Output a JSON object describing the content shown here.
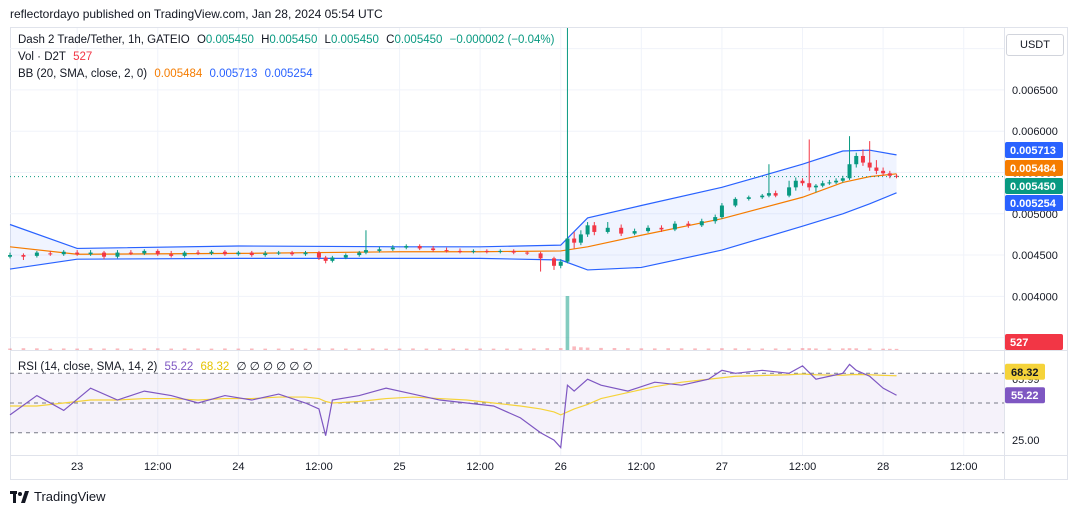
{
  "publish_line": "reflectordayo published on TradingView.com, Jan 28, 2024 05:54 UTC",
  "legend": {
    "symbol": "Dash 2 Trade/Tether, 1h, GATEIO",
    "o_label": "O",
    "o_value": "0.005450",
    "h_label": "H",
    "h_value": "0.005450",
    "l_label": "L",
    "l_value": "0.005450",
    "c_label": "C",
    "c_value": "0.005450",
    "change": "−0.000002 (−0.04%)",
    "vol_label": "Vol · D2T",
    "vol_value": "527",
    "bb_label": "BB (20, SMA, close, 2, 0)",
    "bb_basis": "0.005484",
    "bb_upper": "0.005713",
    "bb_lower": "0.005254",
    "rsi_label": "RSI (14, close, SMA, 14, 2)",
    "rsi_value": "55.22",
    "rsi_ma": "68.32",
    "rsi_extra": "∅ ∅ ∅ ∅ ∅ ∅"
  },
  "currency": "USDT",
  "brand": "TradingView",
  "colors": {
    "up": "#089981",
    "down": "#f23645",
    "basis": "#f57c00",
    "band": "#2962ff",
    "rsi": "#7e57c2",
    "rsi_ma": "#f5d33a"
  },
  "price_tags": [
    {
      "value": "0.005713",
      "color": "#2962ff"
    },
    {
      "value": "0.005484",
      "color": "#f57c00"
    },
    {
      "value": "0.005450",
      "color": "#089981"
    },
    {
      "value": "0.005254",
      "color": "#2962ff"
    },
    {
      "value": "527",
      "color": "#f23645"
    }
  ],
  "rsi_tags": [
    {
      "value": "68.32",
      "color": "#f5d33a",
      "text": "#131722"
    },
    {
      "value": "55.22",
      "color": "#7e57c2",
      "text": "#ffffff"
    }
  ],
  "chart_data": {
    "type": "candlestick",
    "ylim": [
      0.00335,
      0.00725
    ],
    "y_ticks": [
      "0.007000",
      "0.006500",
      "0.006000",
      "0.005500",
      "0.005000",
      "0.004500",
      "0.004000",
      "0.003500"
    ],
    "y_tick_values": [
      0.007,
      0.0065,
      0.006,
      0.0055,
      0.005,
      0.0045,
      0.004,
      0.0035
    ],
    "x_ticks": [
      "23",
      "12:00",
      "24",
      "12:00",
      "25",
      "12:00",
      "26",
      "12:00",
      "27",
      "12:00",
      "28",
      "12:00"
    ],
    "x_tick_hours": [
      0,
      12,
      24,
      36,
      48,
      60,
      72,
      84,
      96,
      108,
      120,
      132
    ],
    "x_hour_range": [
      -10,
      138
    ],
    "last_price": 0.00545,
    "bollinger": {
      "hours": [
        -10,
        0,
        24,
        48,
        60,
        72,
        76,
        84,
        96,
        108,
        114,
        118,
        122
      ],
      "upper": [
        0.00487,
        0.00458,
        0.00461,
        0.0046,
        0.0046,
        0.00462,
        0.00495,
        0.0051,
        0.00532,
        0.0056,
        0.00576,
        0.00577,
        0.005713
      ],
      "basis": [
        0.0046,
        0.00451,
        0.00452,
        0.00454,
        0.00454,
        0.00455,
        0.0046,
        0.00474,
        0.00494,
        0.0052,
        0.00538,
        0.00545,
        0.005484
      ],
      "lower": [
        0.00433,
        0.00445,
        0.00446,
        0.00446,
        0.00446,
        0.00444,
        0.00432,
        0.00435,
        0.00456,
        0.00485,
        0.005,
        0.00512,
        0.005254
      ]
    },
    "candles": [
      {
        "h": -10,
        "o": 0.00448,
        "c": 0.0045,
        "hi": 0.00453,
        "lo": 0.00446
      },
      {
        "h": -8,
        "o": 0.0045,
        "c": 0.00448,
        "hi": 0.00452,
        "lo": 0.00444
      },
      {
        "h": -6,
        "o": 0.00449,
        "c": 0.00453,
        "hi": 0.00455,
        "lo": 0.00447
      },
      {
        "h": -4,
        "o": 0.00452,
        "c": 0.00451,
        "hi": 0.00455,
        "lo": 0.00449
      },
      {
        "h": -2,
        "o": 0.00451,
        "c": 0.00454,
        "hi": 0.00456,
        "lo": 0.00449
      },
      {
        "h": 0,
        "o": 0.00453,
        "c": 0.00451,
        "hi": 0.00456,
        "lo": 0.00449
      },
      {
        "h": 2,
        "o": 0.00451,
        "c": 0.00453,
        "hi": 0.00456,
        "lo": 0.00449
      },
      {
        "h": 4,
        "o": 0.00453,
        "c": 0.00448,
        "hi": 0.00455,
        "lo": 0.00445
      },
      {
        "h": 6,
        "o": 0.00448,
        "c": 0.00453,
        "hi": 0.00456,
        "lo": 0.00446
      },
      {
        "h": 8,
        "o": 0.00453,
        "c": 0.00452,
        "hi": 0.00456,
        "lo": 0.0045
      },
      {
        "h": 10,
        "o": 0.00452,
        "c": 0.00455,
        "hi": 0.00457,
        "lo": 0.0045
      },
      {
        "h": 12,
        "o": 0.00455,
        "c": 0.00451,
        "hi": 0.00457,
        "lo": 0.00449
      },
      {
        "h": 14,
        "o": 0.00451,
        "c": 0.00449,
        "hi": 0.00455,
        "lo": 0.00447
      },
      {
        "h": 16,
        "o": 0.00449,
        "c": 0.00453,
        "hi": 0.00455,
        "lo": 0.00447
      },
      {
        "h": 18,
        "o": 0.00453,
        "c": 0.00452,
        "hi": 0.00456,
        "lo": 0.0045
      },
      {
        "h": 20,
        "o": 0.00452,
        "c": 0.00454,
        "hi": 0.00456,
        "lo": 0.0045
      },
      {
        "h": 22,
        "o": 0.00454,
        "c": 0.00451,
        "hi": 0.00456,
        "lo": 0.00449
      },
      {
        "h": 24,
        "o": 0.00451,
        "c": 0.00453,
        "hi": 0.00455,
        "lo": 0.00449
      },
      {
        "h": 26,
        "o": 0.00453,
        "c": 0.0045,
        "hi": 0.00455,
        "lo": 0.00448
      },
      {
        "h": 28,
        "o": 0.0045,
        "c": 0.00452,
        "hi": 0.00455,
        "lo": 0.00448
      },
      {
        "h": 30,
        "o": 0.00452,
        "c": 0.00453,
        "hi": 0.00455,
        "lo": 0.0045
      },
      {
        "h": 32,
        "o": 0.00453,
        "c": 0.00451,
        "hi": 0.00455,
        "lo": 0.00449
      },
      {
        "h": 34,
        "o": 0.00451,
        "c": 0.00453,
        "hi": 0.00455,
        "lo": 0.00449
      },
      {
        "h": 36,
        "o": 0.00453,
        "c": 0.00447,
        "hi": 0.00455,
        "lo": 0.00444
      },
      {
        "h": 37,
        "o": 0.00447,
        "c": 0.00443,
        "hi": 0.00449,
        "lo": 0.0044
      },
      {
        "h": 38,
        "o": 0.00443,
        "c": 0.00447,
        "hi": 0.00449,
        "lo": 0.00441
      },
      {
        "h": 40,
        "o": 0.00447,
        "c": 0.0045,
        "hi": 0.00452,
        "lo": 0.00445
      },
      {
        "h": 42,
        "o": 0.0045,
        "c": 0.00453,
        "hi": 0.00455,
        "lo": 0.00448
      },
      {
        "h": 43,
        "o": 0.00453,
        "c": 0.00456,
        "hi": 0.0048,
        "lo": 0.00451
      },
      {
        "h": 45,
        "o": 0.00455,
        "c": 0.00457,
        "hi": 0.0046,
        "lo": 0.00453
      },
      {
        "h": 47,
        "o": 0.00457,
        "c": 0.00459,
        "hi": 0.00462,
        "lo": 0.00455
      },
      {
        "h": 49,
        "o": 0.00459,
        "c": 0.00461,
        "hi": 0.00463,
        "lo": 0.00457
      },
      {
        "h": 51,
        "o": 0.00461,
        "c": 0.00458,
        "hi": 0.00463,
        "lo": 0.00456
      },
      {
        "h": 53,
        "o": 0.00458,
        "c": 0.00456,
        "hi": 0.00461,
        "lo": 0.00454
      },
      {
        "h": 55,
        "o": 0.00456,
        "c": 0.00455,
        "hi": 0.00459,
        "lo": 0.00453
      },
      {
        "h": 57,
        "o": 0.00455,
        "c": 0.00454,
        "hi": 0.00458,
        "lo": 0.00452
      },
      {
        "h": 59,
        "o": 0.00454,
        "c": 0.00455,
        "hi": 0.00457,
        "lo": 0.00452
      },
      {
        "h": 61,
        "o": 0.00455,
        "c": 0.00454,
        "hi": 0.00457,
        "lo": 0.00452
      },
      {
        "h": 63,
        "o": 0.00454,
        "c": 0.00455,
        "hi": 0.00457,
        "lo": 0.00452
      },
      {
        "h": 65,
        "o": 0.00455,
        "c": 0.00453,
        "hi": 0.00457,
        "lo": 0.00451
      },
      {
        "h": 67,
        "o": 0.00453,
        "c": 0.00452,
        "hi": 0.00455,
        "lo": 0.0045
      },
      {
        "h": 69,
        "o": 0.00452,
        "c": 0.00446,
        "hi": 0.00454,
        "lo": 0.0043
      },
      {
        "h": 71,
        "o": 0.00446,
        "c": 0.00437,
        "hi": 0.00448,
        "lo": 0.00432
      },
      {
        "h": 72,
        "o": 0.00437,
        "c": 0.00442,
        "hi": 0.00445,
        "lo": 0.00434
      },
      {
        "h": 73,
        "o": 0.00442,
        "c": 0.0047,
        "hi": 0.00725,
        "lo": 0.0044
      },
      {
        "h": 74,
        "o": 0.0047,
        "c": 0.00465,
        "hi": 0.00478,
        "lo": 0.00458
      },
      {
        "h": 75,
        "o": 0.00465,
        "c": 0.00475,
        "hi": 0.0048,
        "lo": 0.00462
      },
      {
        "h": 76,
        "o": 0.00475,
        "c": 0.00486,
        "hi": 0.0049,
        "lo": 0.00472
      },
      {
        "h": 77,
        "o": 0.00486,
        "c": 0.00478,
        "hi": 0.0049,
        "lo": 0.00474
      },
      {
        "h": 79,
        "o": 0.00478,
        "c": 0.00483,
        "hi": 0.0049,
        "lo": 0.00476
      },
      {
        "h": 81,
        "o": 0.00483,
        "c": 0.00476,
        "hi": 0.00487,
        "lo": 0.00473
      },
      {
        "h": 83,
        "o": 0.00476,
        "c": 0.00479,
        "hi": 0.00482,
        "lo": 0.00474
      },
      {
        "h": 85,
        "o": 0.00479,
        "c": 0.00483,
        "hi": 0.00486,
        "lo": 0.00477
      },
      {
        "h": 87,
        "o": 0.00483,
        "c": 0.00481,
        "hi": 0.00486,
        "lo": 0.00478
      },
      {
        "h": 89,
        "o": 0.00481,
        "c": 0.00488,
        "hi": 0.00491,
        "lo": 0.00479
      },
      {
        "h": 91,
        "o": 0.00488,
        "c": 0.00486,
        "hi": 0.00491,
        "lo": 0.00483
      },
      {
        "h": 93,
        "o": 0.00486,
        "c": 0.00491,
        "hi": 0.00494,
        "lo": 0.00484
      },
      {
        "h": 95,
        "o": 0.00491,
        "c": 0.00496,
        "hi": 0.00499,
        "lo": 0.00488
      },
      {
        "h": 96,
        "o": 0.00496,
        "c": 0.0051,
        "hi": 0.00513,
        "lo": 0.00494
      },
      {
        "h": 98,
        "o": 0.0051,
        "c": 0.00518,
        "hi": 0.0052,
        "lo": 0.00508
      },
      {
        "h": 100,
        "o": 0.00518,
        "c": 0.0052,
        "hi": 0.00522,
        "lo": 0.00516
      },
      {
        "h": 102,
        "o": 0.0052,
        "c": 0.00522,
        "hi": 0.00524,
        "lo": 0.00518
      },
      {
        "h": 103,
        "o": 0.00522,
        "c": 0.00525,
        "hi": 0.0056,
        "lo": 0.0052
      },
      {
        "h": 104,
        "o": 0.00525,
        "c": 0.00522,
        "hi": 0.00528,
        "lo": 0.0052
      },
      {
        "h": 106,
        "o": 0.00522,
        "c": 0.00532,
        "hi": 0.0054,
        "lo": 0.0052
      },
      {
        "h": 107,
        "o": 0.00532,
        "c": 0.0054,
        "hi": 0.00544,
        "lo": 0.00528
      },
      {
        "h": 108,
        "o": 0.0054,
        "c": 0.00537,
        "hi": 0.00543,
        "lo": 0.00534
      },
      {
        "h": 109,
        "o": 0.00537,
        "c": 0.00532,
        "hi": 0.0059,
        "lo": 0.00528
      },
      {
        "h": 110,
        "o": 0.00532,
        "c": 0.00534,
        "hi": 0.00536,
        "lo": 0.00526
      },
      {
        "h": 111,
        "o": 0.00534,
        "c": 0.00537,
        "hi": 0.0054,
        "lo": 0.00532
      },
      {
        "h": 112,
        "o": 0.00537,
        "c": 0.00538,
        "hi": 0.00541,
        "lo": 0.00535
      },
      {
        "h": 113,
        "o": 0.00538,
        "c": 0.0054,
        "hi": 0.00543,
        "lo": 0.00536
      },
      {
        "h": 114,
        "o": 0.0054,
        "c": 0.00543,
        "hi": 0.00546,
        "lo": 0.00538
      },
      {
        "h": 115,
        "o": 0.00543,
        "c": 0.0056,
        "hi": 0.00594,
        "lo": 0.00541
      },
      {
        "h": 116,
        "o": 0.0056,
        "c": 0.0057,
        "hi": 0.00574,
        "lo": 0.00556
      },
      {
        "h": 117,
        "o": 0.0057,
        "c": 0.00562,
        "hi": 0.00578,
        "lo": 0.00558
      },
      {
        "h": 118,
        "o": 0.00562,
        "c": 0.00556,
        "hi": 0.00588,
        "lo": 0.00552
      },
      {
        "h": 119,
        "o": 0.00556,
        "c": 0.00552,
        "hi": 0.00565,
        "lo": 0.00548
      },
      {
        "h": 120,
        "o": 0.00552,
        "c": 0.00549,
        "hi": 0.00556,
        "lo": 0.00546
      },
      {
        "h": 121,
        "o": 0.00549,
        "c": 0.00546,
        "hi": 0.00552,
        "lo": 0.00543
      },
      {
        "h": 122,
        "o": 0.00546,
        "c": 0.00545,
        "hi": 0.00548,
        "lo": 0.00543
      }
    ],
    "volume_max": 10000,
    "volume": [
      {
        "h": -10,
        "v": 250
      },
      {
        "h": -8,
        "v": 300
      },
      {
        "h": -6,
        "v": 280
      },
      {
        "h": -4,
        "v": 220
      },
      {
        "h": -2,
        "v": 260
      },
      {
        "h": 0,
        "v": 240
      },
      {
        "h": 2,
        "v": 300
      },
      {
        "h": 4,
        "v": 250
      },
      {
        "h": 6,
        "v": 260
      },
      {
        "h": 8,
        "v": 230
      },
      {
        "h": 10,
        "v": 270
      },
      {
        "h": 12,
        "v": 280
      },
      {
        "h": 14,
        "v": 240
      },
      {
        "h": 16,
        "v": 260
      },
      {
        "h": 18,
        "v": 250
      },
      {
        "h": 20,
        "v": 230
      },
      {
        "h": 22,
        "v": 260
      },
      {
        "h": 24,
        "v": 240
      },
      {
        "h": 26,
        "v": 250
      },
      {
        "h": 28,
        "v": 230
      },
      {
        "h": 30,
        "v": 240
      },
      {
        "h": 32,
        "v": 260
      },
      {
        "h": 34,
        "v": 230
      },
      {
        "h": 36,
        "v": 280
      },
      {
        "h": 38,
        "v": 260
      },
      {
        "h": 40,
        "v": 240
      },
      {
        "h": 42,
        "v": 250
      },
      {
        "h": 44,
        "v": 260
      },
      {
        "h": 46,
        "v": 230
      },
      {
        "h": 48,
        "v": 240
      },
      {
        "h": 50,
        "v": 260
      },
      {
        "h": 52,
        "v": 240
      },
      {
        "h": 54,
        "v": 250
      },
      {
        "h": 56,
        "v": 230
      },
      {
        "h": 58,
        "v": 240
      },
      {
        "h": 60,
        "v": 250
      },
      {
        "h": 62,
        "v": 230
      },
      {
        "h": 64,
        "v": 240
      },
      {
        "h": 66,
        "v": 250
      },
      {
        "h": 68,
        "v": 260
      },
      {
        "h": 70,
        "v": 300
      },
      {
        "h": 72,
        "v": 320
      },
      {
        "h": 73,
        "v": 9000
      },
      {
        "h": 74,
        "v": 600
      },
      {
        "h": 75,
        "v": 450
      },
      {
        "h": 76,
        "v": 400
      },
      {
        "h": 78,
        "v": 350
      },
      {
        "h": 80,
        "v": 330
      },
      {
        "h": 82,
        "v": 300
      },
      {
        "h": 84,
        "v": 280
      },
      {
        "h": 86,
        "v": 270
      },
      {
        "h": 88,
        "v": 300
      },
      {
        "h": 90,
        "v": 280
      },
      {
        "h": 92,
        "v": 270
      },
      {
        "h": 94,
        "v": 260
      },
      {
        "h": 96,
        "v": 300
      },
      {
        "h": 98,
        "v": 280
      },
      {
        "h": 100,
        "v": 270
      },
      {
        "h": 102,
        "v": 250
      },
      {
        "h": 104,
        "v": 260
      },
      {
        "h": 106,
        "v": 270
      },
      {
        "h": 108,
        "v": 320
      },
      {
        "h": 109,
        "v": 300
      },
      {
        "h": 110,
        "v": 260
      },
      {
        "h": 112,
        "v": 250
      },
      {
        "h": 114,
        "v": 270
      },
      {
        "h": 115,
        "v": 300
      },
      {
        "h": 116,
        "v": 280
      },
      {
        "h": 118,
        "v": 260
      },
      {
        "h": 120,
        "v": 220
      },
      {
        "h": 121,
        "v": 200
      },
      {
        "h": 122,
        "v": 190
      }
    ],
    "rsi": {
      "ylim": [
        15,
        85
      ],
      "ticks": [
        "65.99",
        "25.00"
      ],
      "tick_values": [
        65.99,
        25.0
      ],
      "levels": [
        70,
        50,
        30
      ],
      "hours": [
        -10,
        -6,
        -2,
        2,
        6,
        10,
        14,
        18,
        22,
        26,
        30,
        34,
        36,
        37,
        38,
        42,
        46,
        50,
        54,
        58,
        62,
        66,
        69,
        71,
        72,
        73,
        74,
        76,
        78,
        82,
        86,
        90,
        94,
        96,
        98,
        102,
        106,
        108,
        110,
        112,
        114,
        115,
        116,
        118,
        120,
        122
      ],
      "values": [
        42,
        55,
        45,
        60,
        52,
        58,
        55,
        50,
        55,
        52,
        56,
        50,
        46,
        28,
        52,
        55,
        60,
        56,
        52,
        50,
        48,
        40,
        30,
        25,
        20,
        62,
        58,
        66,
        62,
        58,
        64,
        62,
        66,
        72,
        70,
        72,
        70,
        75,
        66,
        68,
        70,
        76,
        72,
        68,
        60,
        55.22
      ],
      "ma": [
        48,
        48,
        50,
        52,
        52,
        53,
        53,
        52,
        53,
        53,
        54,
        54,
        53,
        51,
        50,
        51,
        53,
        54,
        53,
        52,
        50,
        48,
        46,
        44,
        42,
        44,
        46,
        49,
        53,
        57,
        61,
        64,
        66,
        67,
        68,
        68.5,
        69,
        69.5,
        69,
        68.8,
        68.7,
        69,
        69.2,
        69,
        68.6,
        68.32
      ]
    }
  }
}
